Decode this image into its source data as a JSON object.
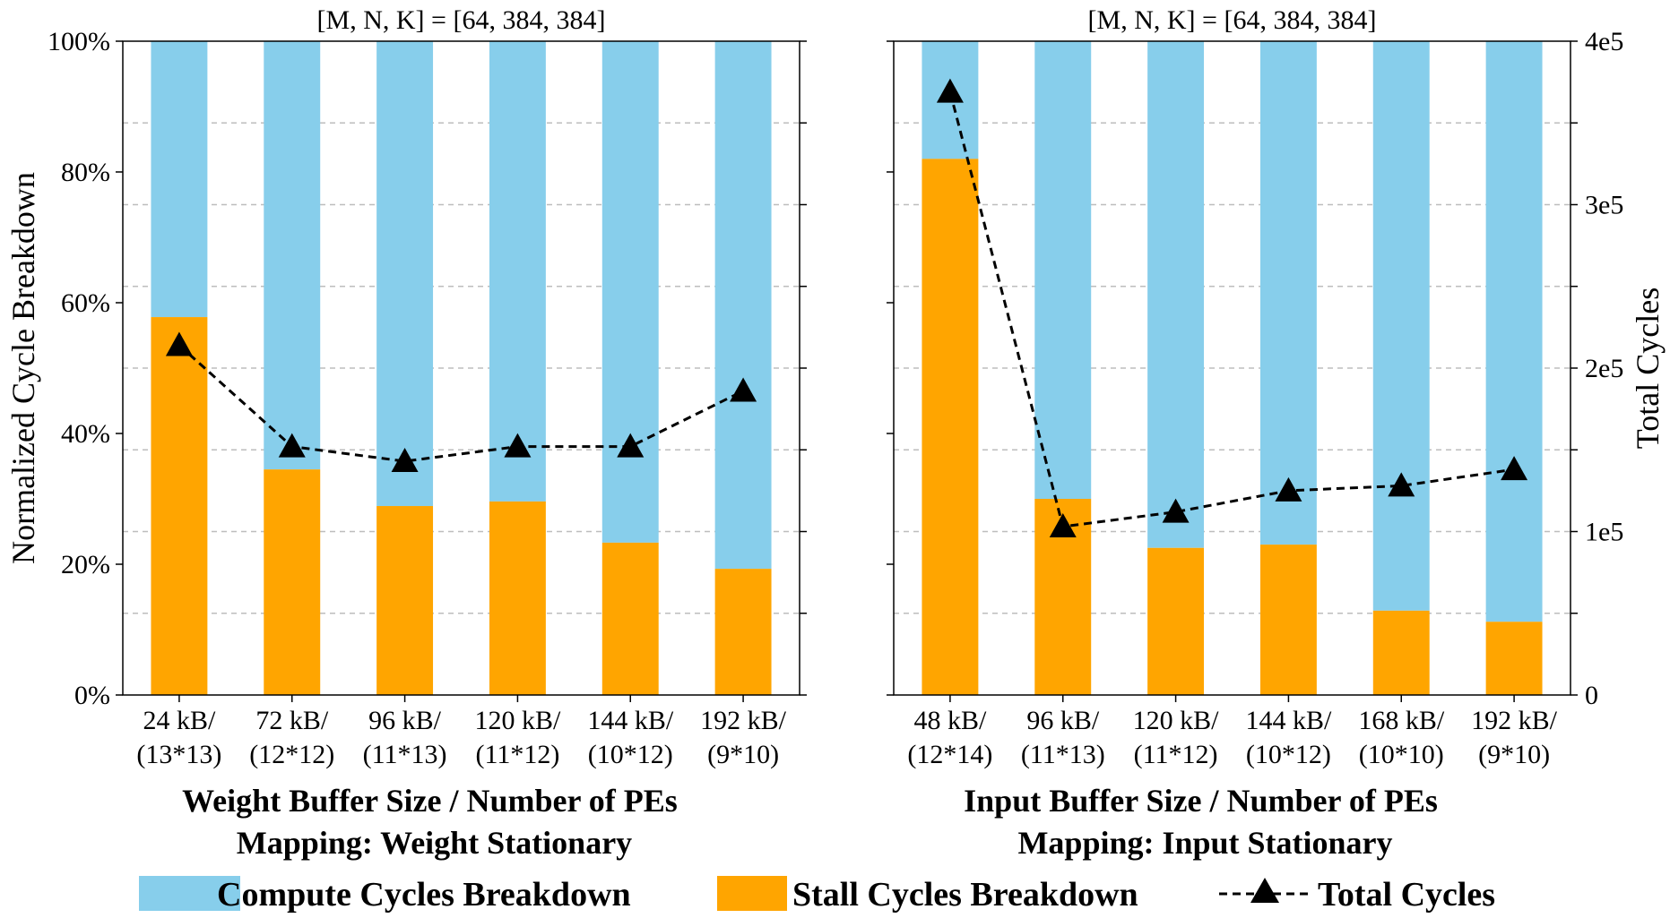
{
  "colors": {
    "compute": "#87CEEB",
    "stall": "#FFA500",
    "line": "#000000",
    "grid": "#bdbdbd"
  },
  "legend": {
    "compute": "Compute Cycles Breakdown",
    "stall": "Stall Cycles Breakdown",
    "total": "Total Cycles"
  },
  "chart_data": [
    {
      "type": "bar",
      "stacked": true,
      "title": "[M, N, K] = [64, 384, 384]",
      "xlabel": [
        "Weight Buffer Size / Number of PEs",
        "Mapping: Weight Stationary"
      ],
      "ylabel": "Normalized Cycle Breakdown",
      "ylim": [
        0,
        100
      ],
      "yticks": [
        "0%",
        "20%",
        "40%",
        "60%",
        "80%",
        "100%"
      ],
      "categories": [
        [
          "24 kB/",
          "(13*13)"
        ],
        [
          "72 kB/",
          "(12*12)"
        ],
        [
          "96 kB/",
          "(11*13)"
        ],
        [
          "120 kB/",
          "(11*12)"
        ],
        [
          "144 kB/",
          "(10*12)"
        ],
        [
          "192 kB/",
          "(9*10)"
        ]
      ],
      "series": [
        {
          "name": "Stall Cycles Breakdown",
          "values": [
            57.8,
            34.5,
            28.9,
            29.6,
            23.3,
            19.3
          ]
        },
        {
          "name": "Compute Cycles Breakdown",
          "values": [
            42.2,
            65.5,
            71.1,
            70.4,
            76.7,
            80.7
          ]
        }
      ],
      "line": {
        "name": "Total Cycles",
        "axis": "right",
        "ylim": [
          0,
          400000
        ],
        "values": [
          214000,
          152000,
          143000,
          152000,
          152000,
          186000
        ]
      }
    },
    {
      "type": "bar",
      "stacked": true,
      "title": "[M, N, K] = [64, 384, 384]",
      "xlabel": [
        "Input Buffer Size / Number of PEs",
        "Mapping: Input Stationary"
      ],
      "y2label": "Total Cycles",
      "ylim": [
        0,
        100
      ],
      "y2lim": [
        0,
        400000
      ],
      "y2ticks": [
        "0",
        "1e5",
        "2e5",
        "3e5",
        "4e5"
      ],
      "categories": [
        [
          "48 kB/",
          "(12*14)"
        ],
        [
          "96 kB/",
          "(11*13)"
        ],
        [
          "120 kB/",
          "(11*12)"
        ],
        [
          "144 kB/",
          "(10*12)"
        ],
        [
          "168 kB/",
          "(10*10)"
        ],
        [
          "192 kB/",
          "(9*10)"
        ]
      ],
      "series": [
        {
          "name": "Stall Cycles Breakdown",
          "values": [
            82.0,
            30.0,
            22.5,
            23.0,
            12.9,
            11.2
          ]
        },
        {
          "name": "Compute Cycles Breakdown",
          "values": [
            18.0,
            70.0,
            77.5,
            77.0,
            87.1,
            88.8
          ]
        }
      ],
      "line": {
        "name": "Total Cycles",
        "axis": "right",
        "ylim": [
          0,
          400000
        ],
        "values": [
          369000,
          103000,
          112000,
          125000,
          128000,
          138000
        ]
      }
    }
  ]
}
